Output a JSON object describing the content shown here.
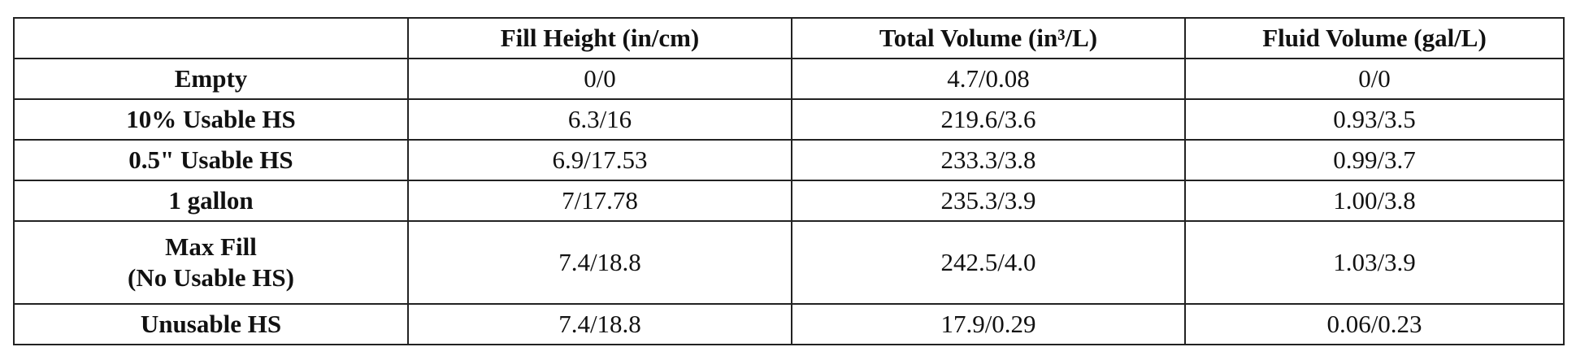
{
  "table": {
    "columns": [
      "Fill Height (in/cm)",
      "Total Volume (in³/L)",
      "Fluid Volume (gal/L)"
    ],
    "rows": [
      {
        "label": "Empty",
        "cells": [
          "0/0",
          "4.7/0.08",
          "0/0"
        ]
      },
      {
        "label": "10% Usable HS",
        "cells": [
          "6.3/16",
          "219.6/3.6",
          "0.93/3.5"
        ]
      },
      {
        "label": "0.5\" Usable HS",
        "cells": [
          "6.9/17.53",
          "233.3/3.8",
          "0.99/3.7"
        ]
      },
      {
        "label": "1 gallon",
        "cells": [
          "7/17.78",
          "235.3/3.9",
          "1.00/3.8"
        ]
      },
      {
        "label": "Max Fill\n(No Usable HS)",
        "cells": [
          "7.4/18.8",
          "242.5/4.0",
          "1.03/3.9"
        ]
      },
      {
        "label": "Unusable HS",
        "cells": [
          "7.4/18.8",
          "17.9/0.29",
          "0.06/0.23"
        ]
      }
    ]
  }
}
